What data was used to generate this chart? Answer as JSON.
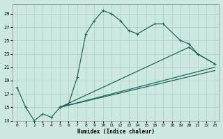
{
  "xlabel": "Humidex (Indice chaleur)",
  "bg_color": "#cde8e0",
  "grid_color": "#aacfc7",
  "line_color": "#1a6b5a",
  "xlim": [
    -0.5,
    23.5
  ],
  "ylim": [
    13,
    30.5
  ],
  "yticks": [
    13,
    15,
    17,
    19,
    21,
    23,
    25,
    27,
    29
  ],
  "xticks": [
    0,
    1,
    2,
    3,
    4,
    5,
    6,
    7,
    8,
    9,
    10,
    11,
    12,
    13,
    14,
    15,
    16,
    17,
    18,
    19,
    20,
    21,
    22,
    23
  ],
  "line1_x": [
    0,
    1,
    2,
    3,
    4,
    5,
    6,
    7,
    8,
    9,
    10,
    11,
    12,
    13,
    14,
    16,
    17,
    19,
    20,
    21,
    23
  ],
  "line1_y": [
    18,
    15,
    13,
    14,
    13.5,
    15,
    15.5,
    19.5,
    26,
    28,
    29.5,
    29,
    28,
    26.5,
    26,
    27.5,
    27.5,
    25,
    24.5,
    23,
    21.5
  ],
  "line2_x": [
    5,
    20,
    21,
    23
  ],
  "line2_y": [
    15,
    24,
    23,
    21.5
  ],
  "line3_x": [
    5,
    23
  ],
  "line3_y": [
    15,
    21
  ],
  "line4_x": [
    5,
    23
  ],
  "line4_y": [
    15,
    20.5
  ]
}
